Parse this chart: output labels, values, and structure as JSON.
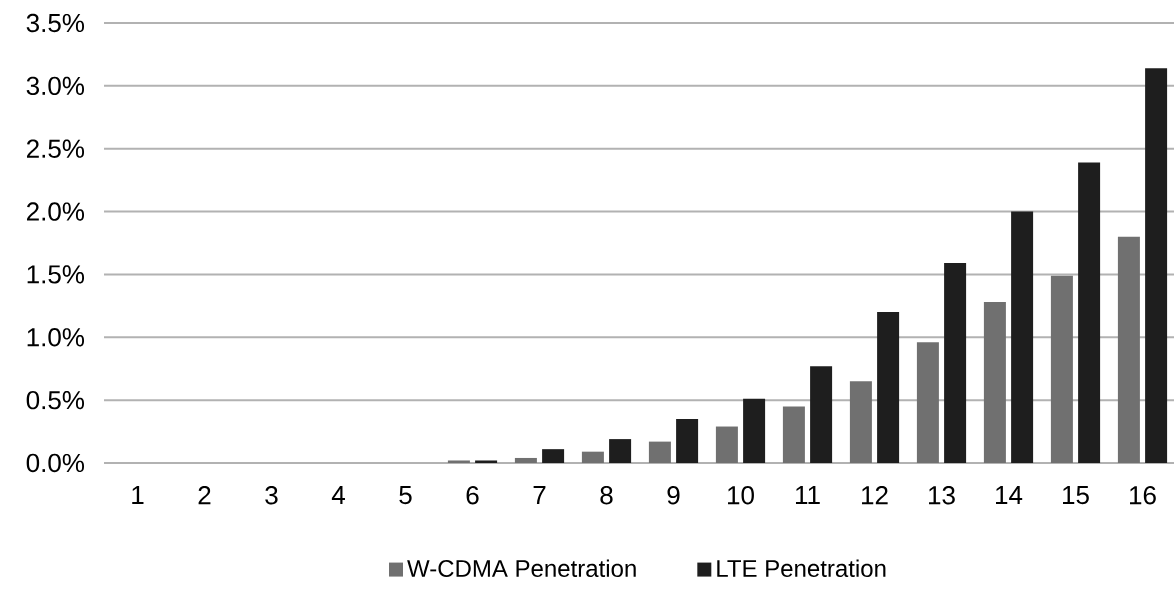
{
  "chart_data": {
    "type": "bar",
    "categories": [
      "1",
      "2",
      "3",
      "4",
      "5",
      "6",
      "7",
      "8",
      "9",
      "10",
      "11",
      "12",
      "13",
      "14",
      "15",
      "16"
    ],
    "series": [
      {
        "name": "W-CDMA Penetration",
        "color": "#707070",
        "values": [
          0,
          0,
          0,
          0,
          0,
          0.02,
          0.04,
          0.09,
          0.17,
          0.29,
          0.45,
          0.65,
          0.96,
          1.28,
          1.49,
          1.8
        ]
      },
      {
        "name": "LTE Penetration",
        "color": "#1e1e1e",
        "values": [
          0,
          0,
          0,
          0,
          0,
          0.02,
          0.11,
          0.19,
          0.35,
          0.51,
          0.77,
          1.2,
          1.59,
          2.0,
          2.39,
          3.14
        ]
      }
    ],
    "ylim": [
      0,
      3.5
    ],
    "yticks": [
      {
        "value": 0,
        "label": "0.0%"
      },
      {
        "value": 0.5,
        "label": "0.5%"
      },
      {
        "value": 1,
        "label": "1.0%"
      },
      {
        "value": 1.5,
        "label": "1.5%"
      },
      {
        "value": 2,
        "label": "2.0%"
      },
      {
        "value": 2.5,
        "label": "2.5%"
      },
      {
        "value": 3,
        "label": "3.0%"
      },
      {
        "value": 3.5,
        "label": "3.5%"
      }
    ],
    "grid": "y",
    "legend": "bottom"
  }
}
